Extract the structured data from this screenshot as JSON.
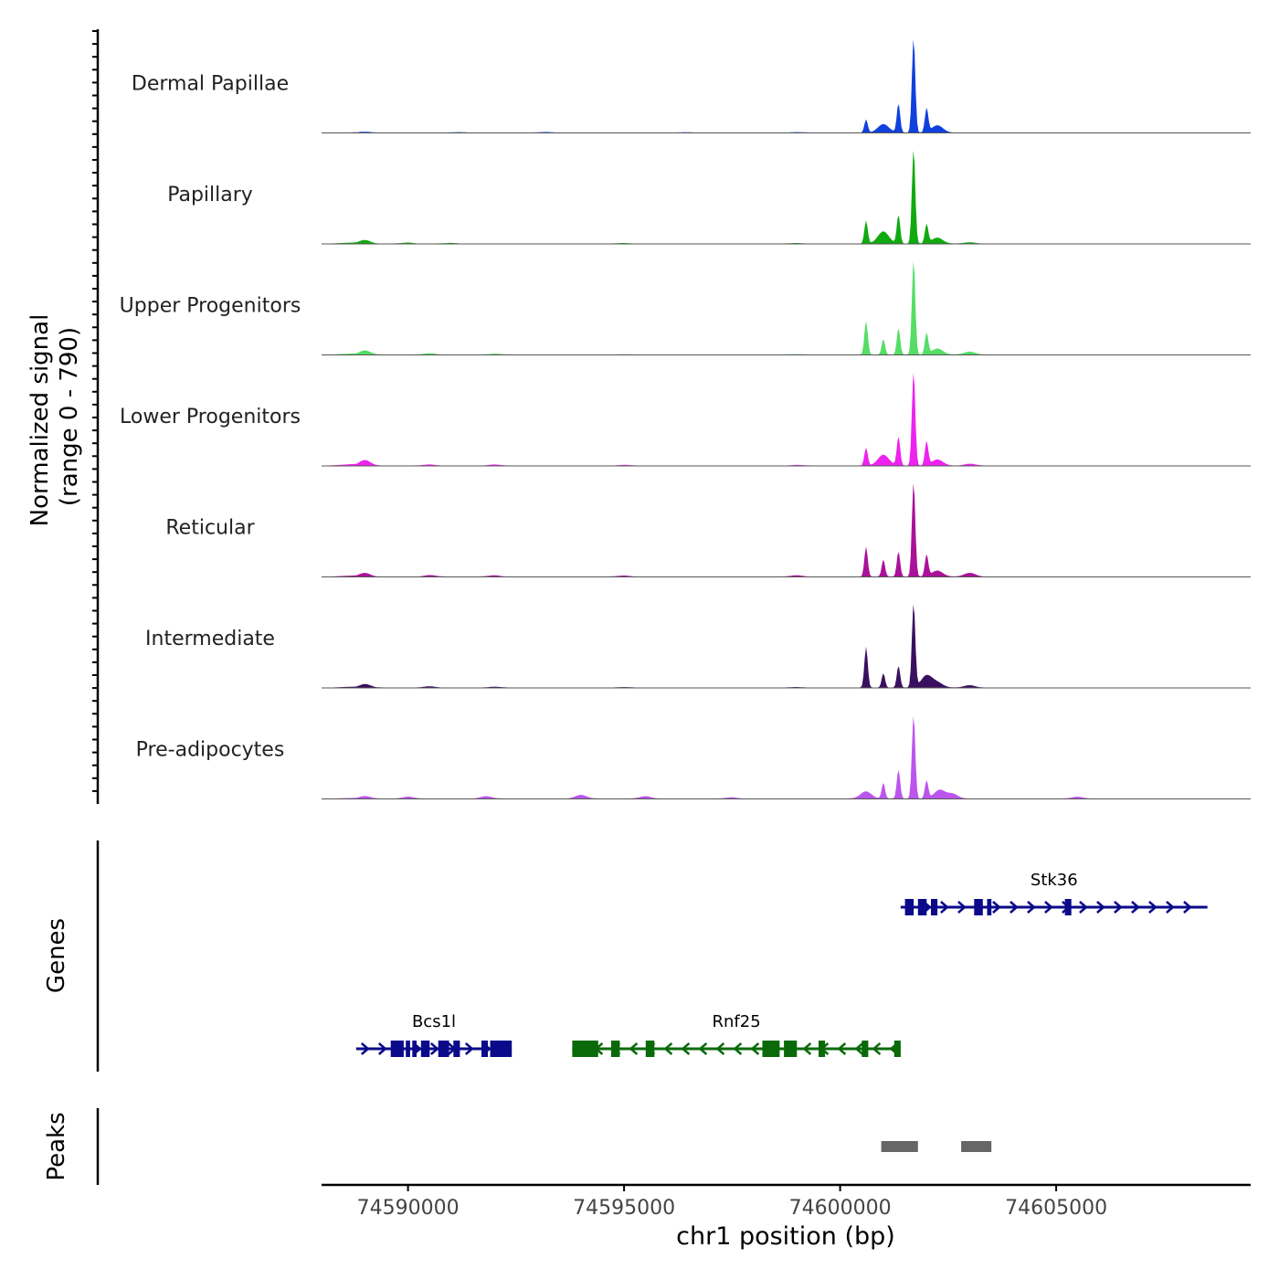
{
  "chart_data": {
    "type": "coverage-track",
    "x": {
      "label": "chr1 position (bp)",
      "range": [
        74588000,
        74609500
      ],
      "ticks": [
        74590000,
        74595000,
        74600000,
        74605000
      ],
      "tick_labels": [
        "74590000",
        "74595000",
        "74600000",
        "74605000"
      ]
    },
    "y": {
      "label_line1": "Normalized signal",
      "label_line2": "(range 0 - 790)",
      "range": [
        0,
        790
      ]
    },
    "tracks": [
      {
        "name": "Dermal Papillae",
        "color": "#1040DD",
        "peaks": [
          [
            74589000,
            6
          ],
          [
            74591200,
            3
          ],
          [
            74593200,
            4
          ],
          [
            74596500,
            3
          ],
          [
            74599000,
            3
          ],
          [
            74600600,
            110
          ],
          [
            74601000,
            70
          ],
          [
            74601350,
            240
          ],
          [
            74601700,
            790
          ],
          [
            74602000,
            200
          ],
          [
            74602250,
            60
          ]
        ]
      },
      {
        "name": "Papillary",
        "color": "#10AA10",
        "peaks": [
          [
            74589000,
            30
          ],
          [
            74590000,
            8
          ],
          [
            74591000,
            5
          ],
          [
            74595000,
            4
          ],
          [
            74599000,
            4
          ],
          [
            74600600,
            190
          ],
          [
            74601000,
            100
          ],
          [
            74601350,
            240
          ],
          [
            74601700,
            790
          ],
          [
            74602000,
            160
          ],
          [
            74602250,
            50
          ],
          [
            74603000,
            10
          ]
        ]
      },
      {
        "name": "Upper Progenitors",
        "color": "#55DD66",
        "peaks": [
          [
            74589000,
            35
          ],
          [
            74590500,
            10
          ],
          [
            74592000,
            8
          ],
          [
            74595000,
            4
          ],
          [
            74599000,
            4
          ],
          [
            74600600,
            280
          ],
          [
            74601000,
            130
          ],
          [
            74601350,
            220
          ],
          [
            74601700,
            790
          ],
          [
            74602000,
            180
          ],
          [
            74602250,
            50
          ],
          [
            74603000,
            25
          ]
        ]
      },
      {
        "name": "Lower Progenitors",
        "color": "#EE22EE",
        "peaks": [
          [
            74589000,
            45
          ],
          [
            74590500,
            10
          ],
          [
            74592000,
            8
          ],
          [
            74595000,
            5
          ],
          [
            74599000,
            5
          ],
          [
            74600600,
            150
          ],
          [
            74601000,
            90
          ],
          [
            74601350,
            240
          ],
          [
            74601700,
            790
          ],
          [
            74602000,
            200
          ],
          [
            74602250,
            50
          ],
          [
            74603000,
            15
          ]
        ]
      },
      {
        "name": "Reticular",
        "color": "#AA1199",
        "peaks": [
          [
            74589000,
            30
          ],
          [
            74590500,
            12
          ],
          [
            74592000,
            10
          ],
          [
            74595000,
            8
          ],
          [
            74599000,
            10
          ],
          [
            74600600,
            250
          ],
          [
            74601000,
            140
          ],
          [
            74601350,
            210
          ],
          [
            74601700,
            790
          ],
          [
            74602000,
            180
          ],
          [
            74602250,
            50
          ],
          [
            74603000,
            30
          ]
        ]
      },
      {
        "name": "Intermediate",
        "color": "#3A0F5F",
        "peaks": [
          [
            74589000,
            30
          ],
          [
            74590500,
            10
          ],
          [
            74592000,
            8
          ],
          [
            74595000,
            5
          ],
          [
            74599000,
            5
          ],
          [
            74600600,
            340
          ],
          [
            74601000,
            120
          ],
          [
            74601350,
            180
          ],
          [
            74601700,
            700
          ],
          [
            74602000,
            100
          ],
          [
            74602250,
            40
          ],
          [
            74603000,
            20
          ]
        ]
      },
      {
        "name": "Pre-adipocytes",
        "color": "#BB55EE",
        "peaks": [
          [
            74589000,
            20
          ],
          [
            74590000,
            15
          ],
          [
            74591800,
            20
          ],
          [
            74594000,
            30
          ],
          [
            74595500,
            20
          ],
          [
            74597500,
            10
          ],
          [
            74600600,
            60
          ],
          [
            74601000,
            130
          ],
          [
            74601350,
            240
          ],
          [
            74601700,
            700
          ],
          [
            74602000,
            150
          ],
          [
            74602300,
            70
          ],
          [
            74602600,
            40
          ],
          [
            74605500,
            15
          ]
        ]
      }
    ],
    "genes": [
      {
        "name": "Stk36",
        "strand": "+",
        "color": "#0A0A8A",
        "start": 74601400,
        "end": 74608500,
        "exons": [
          [
            74601500,
            74601700
          ],
          [
            74601800,
            74602000
          ],
          [
            74602100,
            74602250
          ],
          [
            74603100,
            74603300
          ],
          [
            74603400,
            74603500
          ],
          [
            74605200,
            74605350
          ]
        ]
      },
      {
        "name": "Bcs1l",
        "strand": "+",
        "color": "#0A0A8A",
        "start": 74588800,
        "end": 74592400,
        "exons": [
          [
            74589600,
            74589900
          ],
          [
            74589950,
            74590050
          ],
          [
            74590100,
            74590200
          ],
          [
            74590300,
            74590500
          ],
          [
            74590700,
            74590950
          ],
          [
            74591050,
            74591200
          ],
          [
            74591700,
            74591850
          ],
          [
            74591900,
            74592400
          ]
        ]
      },
      {
        "name": "Rnf25",
        "strand": "-",
        "color": "#0A6A0A",
        "start": 74593800,
        "end": 74601400,
        "exons": [
          [
            74593800,
            74594400
          ],
          [
            74594700,
            74594900
          ],
          [
            74595500,
            74595700
          ],
          [
            74598200,
            74598600
          ],
          [
            74598700,
            74599000
          ],
          [
            74599500,
            74599650
          ],
          [
            74600500,
            74600650
          ],
          [
            74601250,
            74601400
          ]
        ]
      }
    ],
    "gene_label": "Genes",
    "peaks_label": "Peaks",
    "peak_regions": [
      [
        74600950,
        74601800
      ],
      [
        74602800,
        74603500
      ]
    ]
  }
}
